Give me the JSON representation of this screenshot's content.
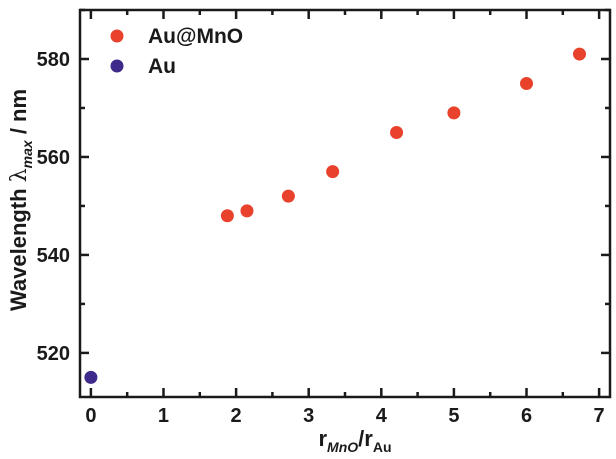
{
  "chart_data": {
    "type": "scatter",
    "title": "",
    "xlabel": {
      "main": "r",
      "sub1": "MnO",
      "sep": "/r",
      "sub2": "Au"
    },
    "ylabel": {
      "prefix": "Wavelength ",
      "lambda": "λ",
      "sub": "max",
      "suffix": " / nm"
    },
    "xlim": [
      -0.15,
      7.15
    ],
    "ylim": [
      511,
      590
    ],
    "x_ticks": [
      0,
      1,
      2,
      3,
      4,
      5,
      6,
      7
    ],
    "y_ticks": [
      520,
      540,
      560,
      580
    ],
    "grid": false,
    "legend_position": "top-left",
    "series": [
      {
        "name": "Au@MnO",
        "color": "#e8412c",
        "points": [
          {
            "x": 1.88,
            "y": 548
          },
          {
            "x": 2.15,
            "y": 549
          },
          {
            "x": 2.72,
            "y": 552
          },
          {
            "x": 3.33,
            "y": 557
          },
          {
            "x": 4.21,
            "y": 565
          },
          {
            "x": 5.0,
            "y": 569
          },
          {
            "x": 6.0,
            "y": 575
          },
          {
            "x": 6.73,
            "y": 581
          }
        ]
      },
      {
        "name": "Au",
        "color": "#3d2a8a",
        "points": [
          {
            "x": 0.0,
            "y": 515
          }
        ]
      }
    ]
  }
}
